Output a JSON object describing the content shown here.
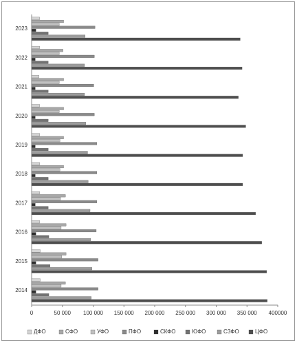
{
  "chart_data": {
    "type": "hbar",
    "categories": [
      "2014",
      "2015",
      "2016",
      "2017",
      "2018",
      "2019",
      "2020",
      "2021",
      "2022",
      "2023"
    ],
    "series": [
      {
        "name": "ДФО",
        "color": "#d4d4d4",
        "values": [
          14000,
          14000,
          13000,
          13000,
          13000,
          13000,
          13000,
          12000,
          13000,
          13000
        ]
      },
      {
        "name": "СФО",
        "color": "#a8a8a8",
        "values": [
          55000,
          56000,
          56000,
          55000,
          52000,
          52000,
          52000,
          52000,
          51000,
          52000
        ]
      },
      {
        "name": "УФО",
        "color": "#c0c0c0",
        "values": [
          48000,
          49000,
          48000,
          47000,
          46000,
          46000,
          45000,
          45000,
          45000,
          45000
        ]
      },
      {
        "name": "ПФО",
        "color": "#8a8a8a",
        "values": [
          108000,
          108000,
          105000,
          106000,
          106000,
          106000,
          102000,
          101000,
          102000,
          103000
        ]
      },
      {
        "name": "СКФО",
        "color": "#2e2e2e",
        "values": [
          7000,
          7000,
          7000,
          6000,
          6000,
          6000,
          6000,
          6000,
          6000,
          7000
        ]
      },
      {
        "name": "ЮФО",
        "color": "#727272",
        "values": [
          28000,
          30000,
          28000,
          27000,
          27000,
          27000,
          27000,
          27000,
          27000,
          27000
        ]
      },
      {
        "name": "СЗФО",
        "color": "#9c9c9c",
        "values": [
          97000,
          98000,
          96000,
          95000,
          92000,
          91000,
          88000,
          86000,
          86000,
          87000
        ]
      },
      {
        "name": "ЦФО",
        "color": "#4e4e4e",
        "values": [
          383000,
          382000,
          374000,
          364000,
          343000,
          343000,
          348000,
          336000,
          342000,
          339000
        ]
      }
    ],
    "xlim": [
      0,
      400000
    ],
    "xticks": [
      0,
      {
        "value": 50000,
        "label": "50 000"
      },
      {
        "value": 100000,
        "label": "100 000"
      },
      {
        "value": 150000,
        "label": "150 000"
      },
      {
        "value": 200000,
        "label": "200 000"
      },
      {
        "value": 250000,
        "label": "250 000"
      },
      {
        "value": 300000,
        "label": "300 000"
      },
      {
        "value": 350000,
        "label": "350 000"
      },
      400000
    ],
    "grid": false,
    "legend": "bottom"
  }
}
